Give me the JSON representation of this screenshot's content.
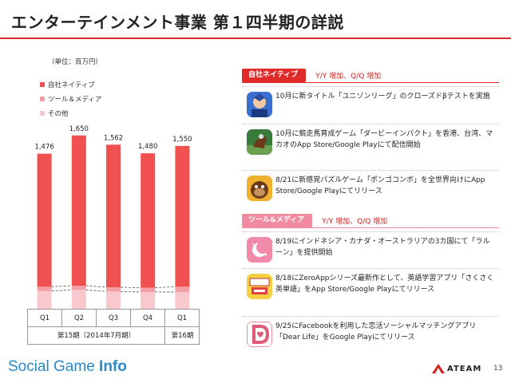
{
  "title": "エンターテインメント事業 第１四半期の詳説",
  "colors": {
    "accent": "#e02a2a",
    "own_native": "#f05050",
    "tools_media": "#f39ea5",
    "other": "#f9c8cc",
    "brand": "#2a8ac8"
  },
  "chart_data": {
    "type": "bar",
    "stacked": true,
    "unit_label": "（単位：百万円）",
    "categories": [
      "Q1",
      "Q2",
      "Q3",
      "Q4",
      "Q1"
    ],
    "period_labels": [
      "第15期（2014年7月期）",
      "第16期"
    ],
    "totals": [
      1476,
      1650,
      1562,
      1480,
      1550
    ],
    "total_labels": [
      "1,476",
      "1,650",
      "1,562",
      "1,480",
      "1,550"
    ],
    "series": [
      {
        "name": "その他",
        "values": [
          170,
          180,
          165,
          160,
          160
        ]
      },
      {
        "name": "ツール＆メディア",
        "values": [
          40,
          40,
          40,
          40,
          50
        ]
      },
      {
        "name": "自社ネイティブ",
        "values": [
          1266,
          1430,
          1357,
          1280,
          1340
        ]
      }
    ],
    "legend": [
      "自社ネイティブ",
      "ツール＆メディア",
      "その他"
    ],
    "ylim": [
      0,
      1800
    ],
    "grid": false,
    "legend_placement": "top-left"
  },
  "sections": [
    {
      "tag": "自社ネイティブ",
      "subtitle": "Y/Y 増加、Q/Q 増加",
      "items": [
        {
          "icon": "anime-hero-game-icon",
          "text": "10月に新タイトル「ユニゾンリーグ」のクローズドβテストを実施"
        },
        {
          "icon": "horse-racing-game-icon",
          "text": "10月に競走馬育成ゲーム「ダービーインパクト」を香港、台湾、マカオのApp Store/Google Playにて配信開始"
        },
        {
          "icon": "gorilla-puzzle-game-icon",
          "text": "8/21に新感覚パズルゲーム「ポンゴコンボ」を全世界向けにApp Store/Google Playにてリリース"
        }
      ]
    },
    {
      "tag": "ツール&メディア",
      "subtitle": "Y/Y 増加、Q/Q 増加",
      "items": [
        {
          "icon": "moon-app-icon",
          "text": "8/19にインドネシア・カナダ・オーストラリアの3カ国にて「ラルーン」を提供開始"
        },
        {
          "icon": "english-vocab-app-icon",
          "text": "8/18にZeroAppシリーズ最新作として、英語学習アプリ「さくさく英単語」をApp Store/Google Playにてリリース"
        },
        {
          "icon": "dating-app-icon",
          "text": "9/25にFacebookを利用した恋活ソーシャルマッチングアプリ「Dear Life」をGoogle Playにてリリース"
        }
      ]
    }
  ],
  "footer": {
    "brand_a": "Social Game ",
    "brand_b": "Info",
    "logo_text": "ATEAM",
    "page": "13"
  }
}
